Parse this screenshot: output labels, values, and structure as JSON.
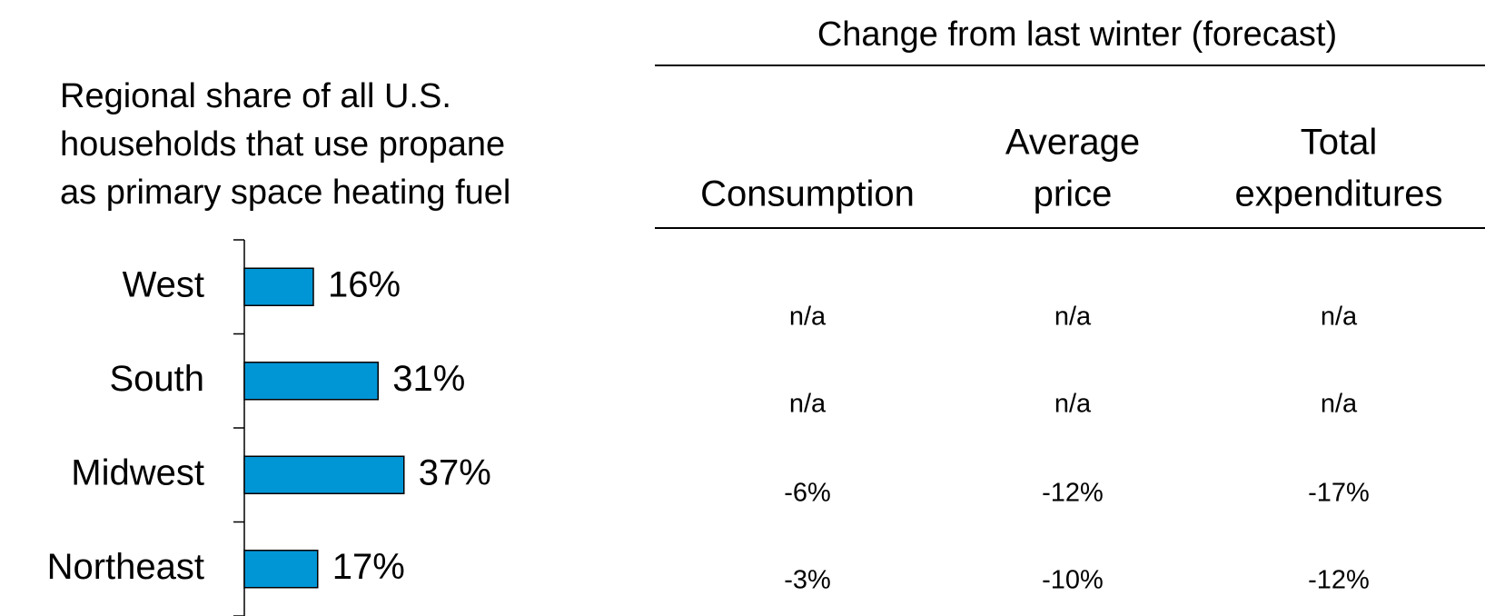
{
  "chart_data": {
    "type": "barh",
    "title": [
      "Regional share of all U.S.",
      "households that use propane",
      "as primary space heating fuel"
    ],
    "categories": [
      "West",
      "South",
      "Midwest",
      "Northeast"
    ],
    "values": [
      16,
      31,
      37,
      17
    ],
    "value_labels": [
      "16%",
      "31%",
      "37%",
      "17%"
    ],
    "color": "#0096d6"
  },
  "table": {
    "title": "Change from last winter (forecast)",
    "columns": [
      [
        "Consumption"
      ],
      [
        "Average",
        "price"
      ],
      [
        "Total",
        "expenditures"
      ]
    ],
    "rows": [
      [
        "n/a",
        "n/a",
        "n/a"
      ],
      [
        "n/a",
        "n/a",
        "n/a"
      ],
      [
        "-6%",
        "-12%",
        "-17%"
      ],
      [
        "-3%",
        "-10%",
        "-12%"
      ]
    ]
  }
}
